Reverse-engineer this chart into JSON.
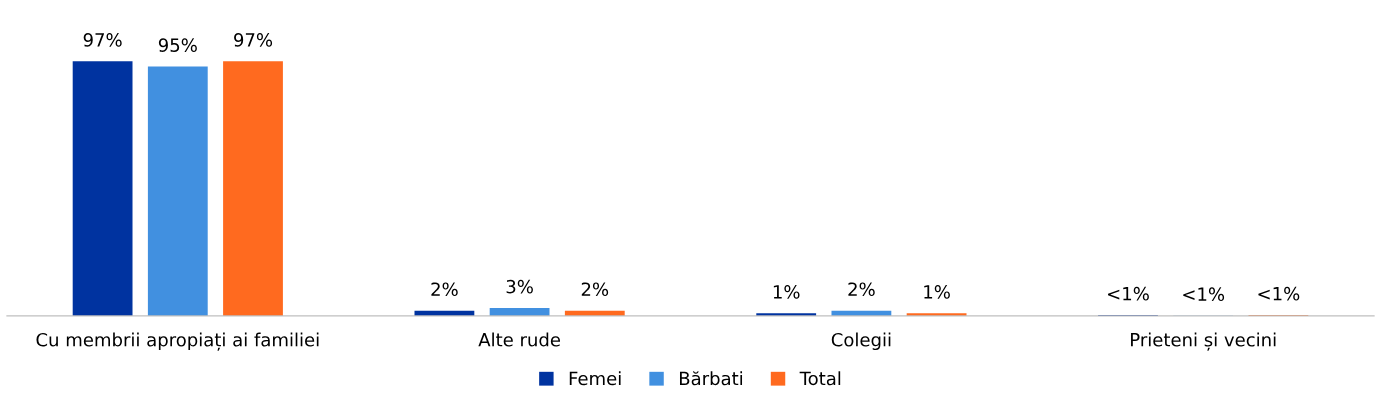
{
  "chart_data": {
    "type": "bar",
    "categories": [
      "Cu membrii apropiați ai familiei",
      "Alte rude",
      "Colegii",
      "Prieteni și vecini"
    ],
    "series": [
      {
        "name": "Femei",
        "color": "#0033a0",
        "values": [
          97,
          2,
          1,
          0.3
        ],
        "value_labels": [
          "97%",
          "2%",
          "1%",
          "<1%"
        ]
      },
      {
        "name": "Bărbati",
        "color": "#4190e0",
        "values": [
          95,
          3,
          2,
          0.1
        ],
        "value_labels": [
          "95%",
          "3%",
          "2%",
          "<1%"
        ]
      },
      {
        "name": "Total",
        "color": "#ff6a1f",
        "values": [
          97,
          2,
          1,
          0.3
        ],
        "value_labels": [
          "97%",
          "2%",
          "1%",
          "<1%"
        ]
      }
    ],
    "legend": "bottom",
    "grid": false
  }
}
